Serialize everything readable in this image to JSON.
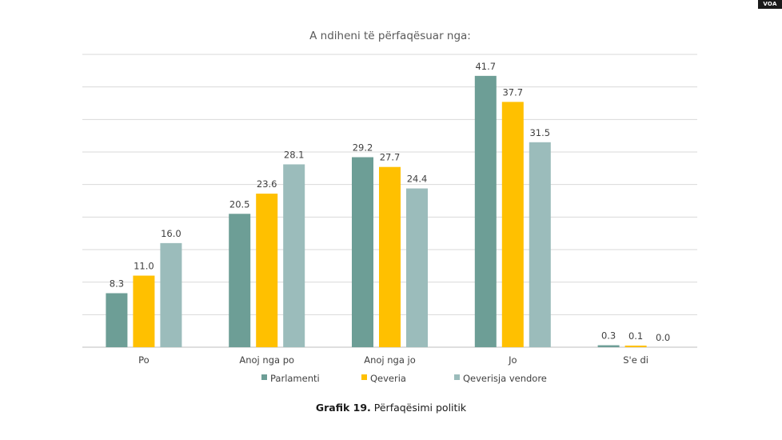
{
  "badge": "VOA",
  "caption": {
    "bold": "Grafik 19.",
    "text": " Përfaqësimi politik"
  },
  "colors": {
    "series": [
      "#6d9e96",
      "#ffc000",
      "#9bbcbb"
    ],
    "grid": "#d9d9d9",
    "axis": "#bfbfbf"
  },
  "chart_data": {
    "type": "bar",
    "title": "A ndiheni të përfaqësuar nga:",
    "categories": [
      "Po",
      "Anoj nga po",
      "Anoj nga jo",
      "Jo",
      "S'e di"
    ],
    "series": [
      {
        "name": "Parlamenti",
        "values": [
          8.3,
          20.5,
          29.2,
          41.7,
          0.3
        ],
        "labels": [
          "8.3",
          "20.5",
          "29.2",
          "41.7",
          "0.3"
        ]
      },
      {
        "name": "Qeveria",
        "values": [
          11.0,
          23.6,
          27.7,
          37.7,
          0.1
        ],
        "labels": [
          "11.0",
          "23.6",
          "27.7",
          "37.7",
          "0.1"
        ]
      },
      {
        "name": "Qeverisja vendore",
        "values": [
          16.0,
          28.1,
          24.4,
          31.5,
          0.0
        ],
        "labels": [
          "16.0",
          "28.1",
          "24.4",
          "31.5",
          "0.0"
        ]
      }
    ],
    "ylim": [
      0,
      45
    ],
    "grid": true,
    "legend": "bottom",
    "xlabel": "",
    "ylabel": ""
  }
}
